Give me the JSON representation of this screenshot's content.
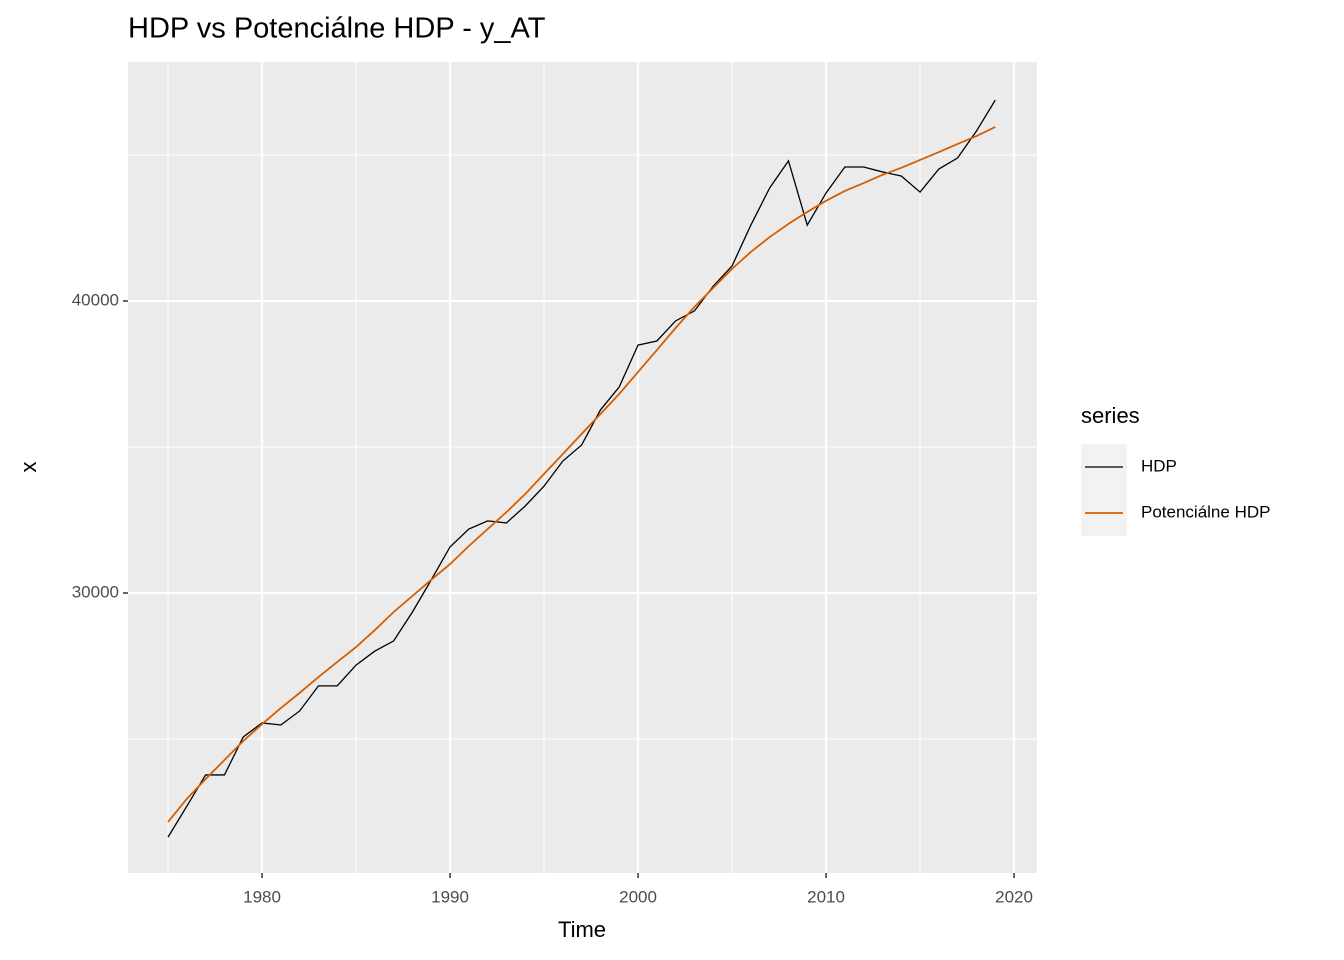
{
  "chart_data": {
    "type": "line",
    "title": "HDP vs Potenciálne HDP - y_AT",
    "x_label": "Time",
    "y_label": "x",
    "x": [
      1975,
      1976,
      1977,
      1978,
      1979,
      1980,
      1981,
      1982,
      1983,
      1984,
      1985,
      1986,
      1987,
      1988,
      1989,
      1990,
      1991,
      1992,
      1993,
      1994,
      1995,
      1996,
      1997,
      1998,
      1999,
      2000,
      2001,
      2002,
      2003,
      2004,
      2005,
      2006,
      2007,
      2008,
      2009,
      2010,
      2011,
      2012,
      2013,
      2014,
      2015,
      2016,
      2017,
      2018,
      2019
    ],
    "series": [
      {
        "name": "HDP",
        "color": "#000000",
        "values": [
          21640,
          22700,
          23770,
          23770,
          25070,
          25550,
          25480,
          25960,
          26820,
          26820,
          27530,
          28010,
          28360,
          29350,
          30450,
          31580,
          32190,
          32470,
          32400,
          32980,
          33660,
          34520,
          35070,
          36270,
          37060,
          38490,
          38630,
          39320,
          39660,
          40510,
          41200,
          42600,
          43870,
          44800,
          42600,
          43700,
          44590,
          44590,
          44420,
          44280,
          43730,
          44520,
          44900,
          45820,
          46880
        ]
      },
      {
        "name": "Potenciálne HDP",
        "color": "#d55e00",
        "values": [
          22160,
          22950,
          23630,
          24280,
          24930,
          25510,
          26060,
          26580,
          27120,
          27640,
          28150,
          28730,
          29350,
          29900,
          30450,
          30990,
          31610,
          32190,
          32770,
          33390,
          34080,
          34760,
          35450,
          36130,
          36820,
          37570,
          38320,
          39080,
          39800,
          40450,
          41100,
          41680,
          42190,
          42640,
          43050,
          43430,
          43770,
          44040,
          44320,
          44560,
          44830,
          45100,
          45380,
          45650,
          45960
        ]
      }
    ],
    "xlim": [
      1972.87,
      2021.22
    ],
    "xticks": [
      1980,
      1990,
      2000,
      2010,
      2020
    ],
    "x_minor_ticks": [
      1975,
      1985,
      1995,
      2005,
      2015
    ],
    "ylim": [
      20411,
      48185
    ],
    "yticks": [
      30000,
      40000
    ],
    "y_minor_ticks": [
      25000,
      35000,
      45000
    ],
    "grid": true,
    "legend_title": "series",
    "legend_position": "right"
  }
}
